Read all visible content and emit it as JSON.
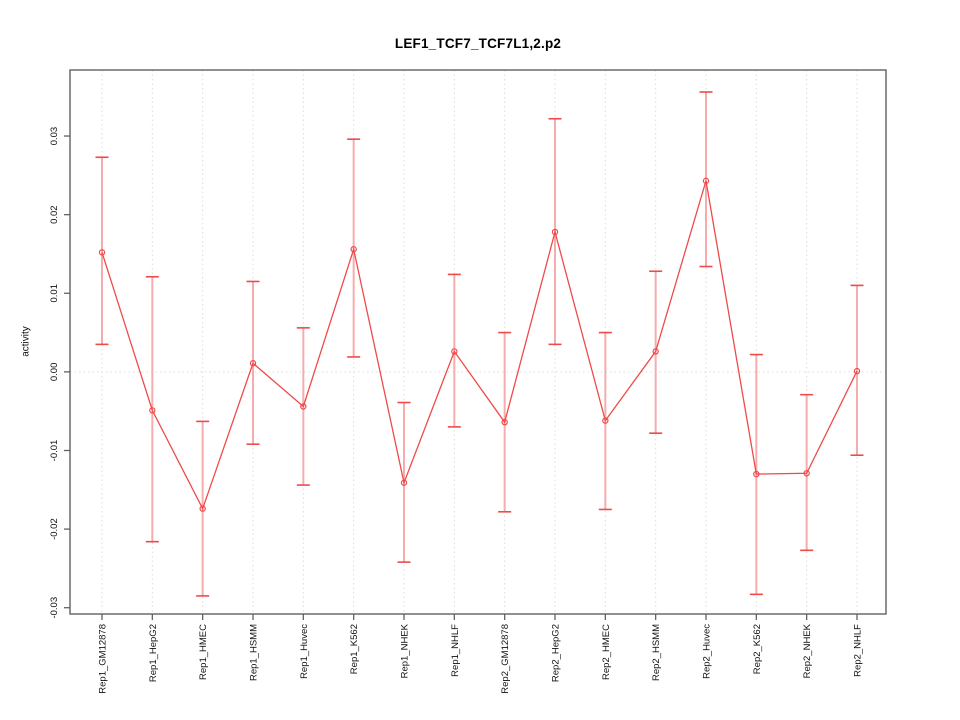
{
  "chart_data": {
    "type": "line",
    "title": "LEF1_TCF7_TCF7L1,2.p2",
    "ylabel": "activity",
    "xlabel": "",
    "categories": [
      "Rep1_GM12878",
      "Rep1_HepG2",
      "Rep1_HMEC",
      "Rep1_HSMM",
      "Rep1_Huvec",
      "Rep1_K562",
      "Rep1_NHEK",
      "Rep1_NHLF",
      "Rep2_GM12878",
      "Rep2_HepG2",
      "Rep2_HMEC",
      "Rep2_HSMM",
      "Rep2_Huvec",
      "Rep2_K562",
      "Rep2_NHEK",
      "Rep2_NHLF"
    ],
    "series": [
      {
        "name": "activity",
        "marker": "open-circle",
        "values": [
          0.0152,
          -0.0049,
          -0.0174,
          0.0011,
          -0.0044,
          0.0156,
          -0.0141,
          0.0026,
          -0.0064,
          0.0178,
          -0.0062,
          0.0026,
          0.0243,
          -0.013,
          -0.0129,
          0.0001
        ],
        "error_upper": [
          0.0273,
          0.0121,
          -0.0063,
          0.0115,
          0.0056,
          0.0296,
          -0.0039,
          0.0124,
          0.005,
          0.0322,
          0.005,
          0.0128,
          0.0356,
          0.0022,
          -0.0029,
          0.011
        ],
        "error_lower": [
          0.0035,
          -0.0216,
          -0.0285,
          -0.0092,
          -0.0144,
          0.0019,
          -0.0242,
          -0.007,
          -0.0178,
          0.0035,
          -0.0175,
          -0.0078,
          0.0134,
          -0.0283,
          -0.0227,
          -0.0106
        ]
      }
    ],
    "yticks": [
      0.03,
      0.02,
      0.01,
      0.0,
      -0.01,
      -0.02,
      -0.03
    ],
    "ytick_labels": [
      "0.03",
      "0.02",
      "0.01",
      "0.00",
      "-0.01",
      "-0.02",
      "-0.03"
    ],
    "ylim": [
      -0.0308,
      0.0384
    ],
    "grid": "dotted vertical line at each category; dotted horizontal line at y=0",
    "legend": "none",
    "colors": {
      "line": "#ef4a4a",
      "error_stem": "#f6acac",
      "grid": "#dcdcdc",
      "axis": "#616161",
      "tick_text": "#111111",
      "background": "#ffffff"
    }
  }
}
